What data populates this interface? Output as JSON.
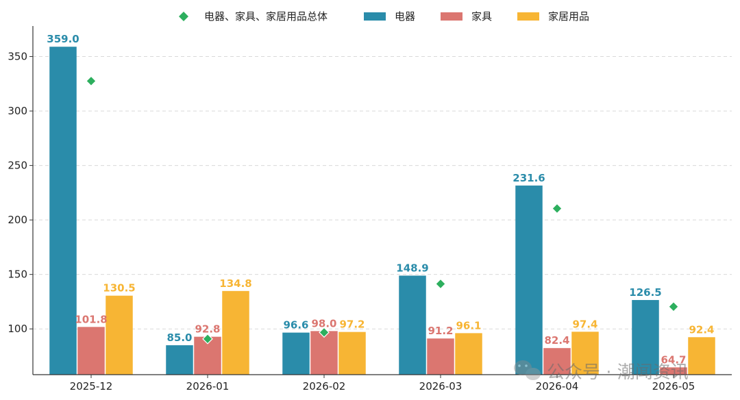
{
  "chart_data": {
    "type": "bar",
    "categories": [
      "2025-12",
      "2026-01",
      "2026-02",
      "2026-03",
      "2026-04",
      "2026-05"
    ],
    "series": [
      {
        "name": "电器",
        "kind": "bar",
        "color": "#2a8caa",
        "values": [
          359.0,
          85.0,
          96.6,
          148.9,
          231.6,
          126.5
        ],
        "labels": [
          "359.0",
          "85.0",
          "96.6",
          "148.9",
          "231.6",
          "126.5"
        ]
      },
      {
        "name": "家具",
        "kind": "bar",
        "color": "#db7670",
        "values": [
          101.8,
          92.8,
          98.0,
          91.2,
          82.4,
          64.7
        ],
        "labels": [
          "101.8",
          "92.8",
          "98.0",
          "91.2",
          "82.4",
          "64.7"
        ]
      },
      {
        "name": "家居用品",
        "kind": "bar",
        "color": "#f7b534",
        "values": [
          130.5,
          134.8,
          97.2,
          96.1,
          97.4,
          92.4
        ],
        "labels": [
          "130.5",
          "134.8",
          "97.2",
          "96.1",
          "97.4",
          "92.4"
        ]
      }
    ],
    "total": {
      "name": "电器、家具、家居用品总体",
      "kind": "scatter",
      "marker": "diamond",
      "color": "#2daf5e",
      "values": [
        327.5,
        90.8,
        96.8,
        141.3,
        210.5,
        120.4
      ]
    },
    "yticks": [
      100,
      150,
      200,
      250,
      300,
      350
    ],
    "ylim": [
      58,
      378
    ],
    "grid": "horizontal-dashed",
    "legend_position": "top-center"
  },
  "watermark": {
    "icon": "wechat-icon",
    "text": "公众号 · 潮闻资讯"
  }
}
